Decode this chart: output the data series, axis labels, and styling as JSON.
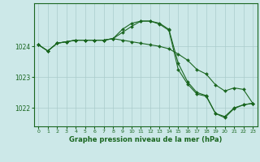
{
  "background_color": "#cce8e8",
  "plot_bg_color": "#cce8e8",
  "grid_color": "#aacccc",
  "line_color": "#1a6620",
  "marker_color": "#1a6620",
  "xlabel": "Graphe pression niveau de la mer (hPa)",
  "xlabel_fontsize": 6.0,
  "ylabel_ticks": [
    1022,
    1023,
    1024
  ],
  "xlim": [
    -0.5,
    23.5
  ],
  "ylim": [
    1021.4,
    1025.4
  ],
  "x_ticks": [
    0,
    1,
    2,
    3,
    4,
    5,
    6,
    7,
    8,
    9,
    10,
    11,
    12,
    13,
    14,
    15,
    16,
    17,
    18,
    19,
    20,
    21,
    22,
    23
  ],
  "series": [
    [
      1024.05,
      1023.85,
      1024.1,
      1024.15,
      1024.2,
      1024.2,
      1024.2,
      1024.2,
      1024.25,
      1024.55,
      1024.75,
      1024.82,
      1024.82,
      1024.75,
      1024.55,
      1023.45,
      1022.85,
      1022.5,
      1022.4,
      1021.82,
      1021.72,
      1022.0,
      1022.1,
      1022.15
    ],
    [
      1024.05,
      1023.85,
      1024.1,
      1024.15,
      1024.2,
      1024.2,
      1024.2,
      1024.2,
      1024.25,
      1024.45,
      1024.65,
      1024.82,
      1024.82,
      1024.72,
      1024.52,
      1023.25,
      1022.78,
      1022.45,
      1022.38,
      1021.82,
      1021.68,
      1021.98,
      1022.1,
      1022.15
    ],
    [
      1024.05,
      1023.85,
      1024.1,
      1024.15,
      1024.2,
      1024.2,
      1024.2,
      1024.2,
      1024.25,
      1024.2,
      1024.15,
      1024.1,
      1024.05,
      1024.0,
      1023.92,
      1023.75,
      1023.55,
      1023.25,
      1023.1,
      1022.75,
      1022.55,
      1022.65,
      1022.6,
      1022.15
    ]
  ]
}
